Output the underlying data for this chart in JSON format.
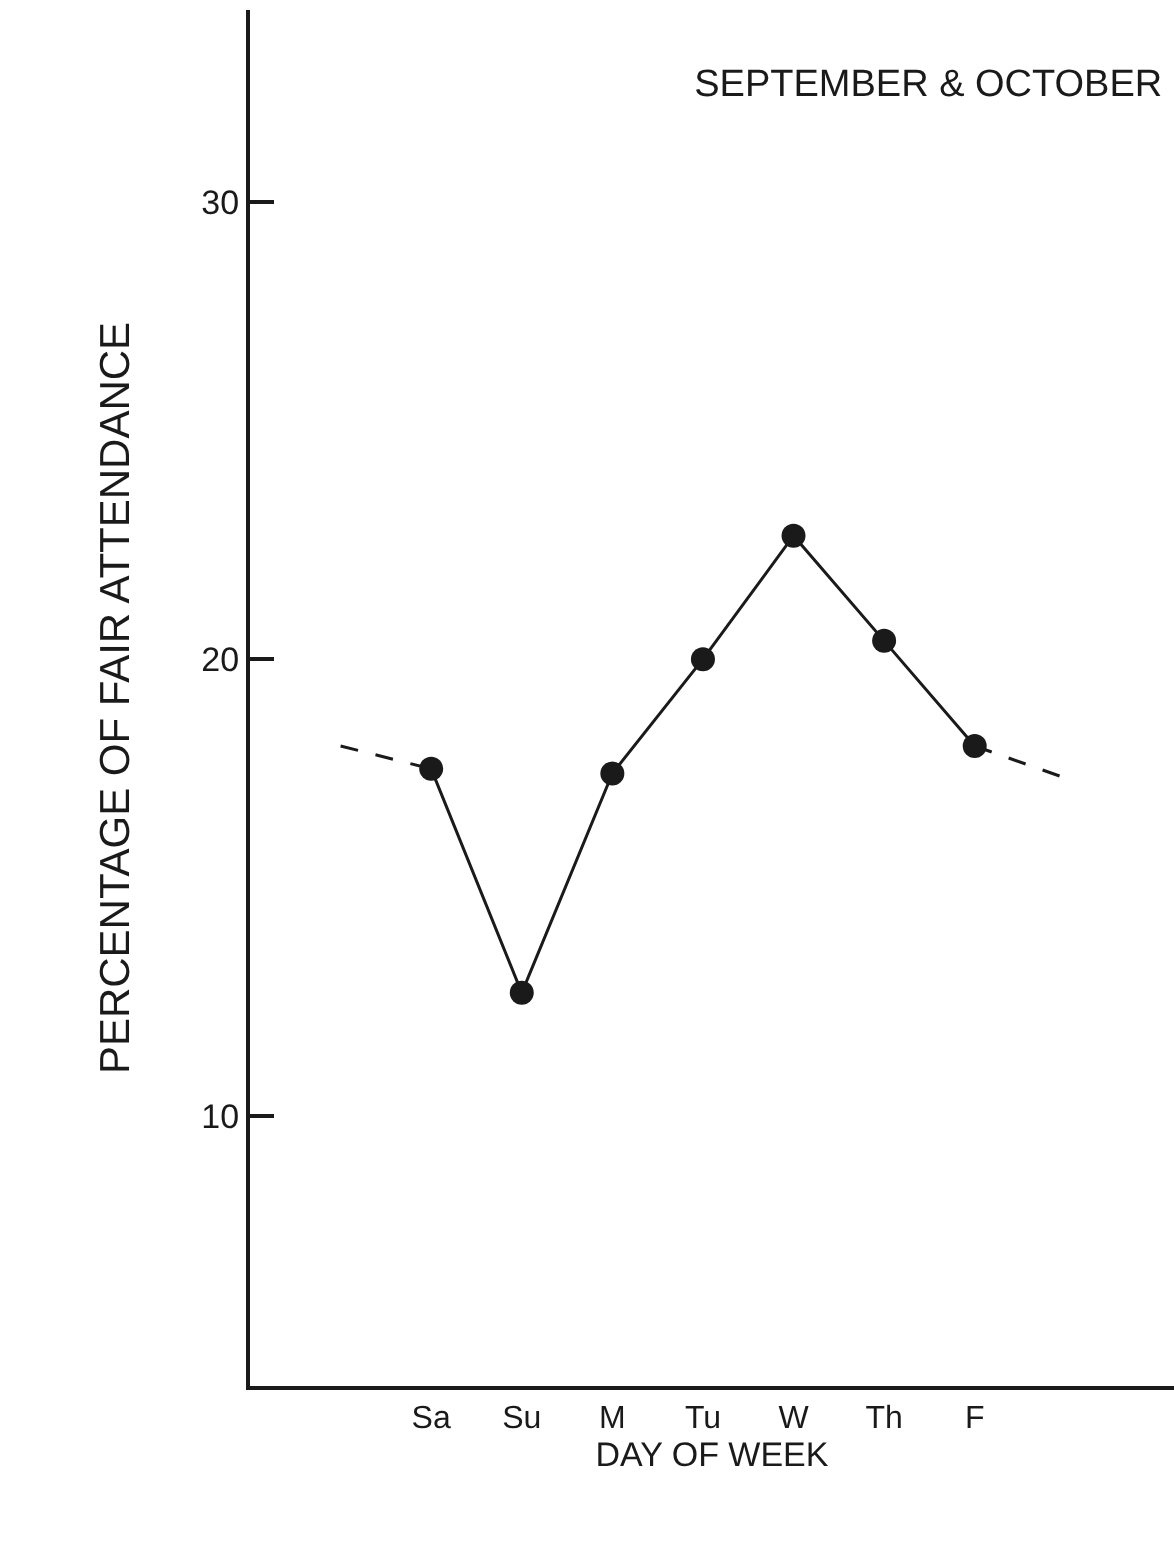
{
  "chart_data": {
    "type": "line",
    "title": "SEPTEMBER & OCTOBER",
    "xlabel": "DAY OF WEEK",
    "ylabel": "PERCENTAGE OF FAIR ATTENDANCE",
    "categories": [
      null,
      "Sa",
      "Su",
      "M",
      "Tu",
      "W",
      "Th",
      "F",
      null
    ],
    "ylim": [
      4.1,
      34.2
    ],
    "yticks": [
      10,
      20,
      30
    ],
    "series": [
      {
        "color": "#1a1a1a",
        "marker": "circle",
        "line_style": "solid",
        "values": [
          null,
          17.6,
          12.7,
          17.5,
          20.0,
          22.7,
          20.4,
          18.1,
          null
        ]
      },
      {
        "color": "#1a1a1a",
        "line_style": "dashed",
        "values": [
          18.1,
          17.6,
          null,
          null,
          null,
          null,
          null,
          null,
          null
        ]
      },
      {
        "color": "#1a1a1a",
        "line_style": "dashed",
        "values": [
          null,
          null,
          null,
          null,
          null,
          null,
          null,
          18.1,
          17.4
        ]
      }
    ]
  }
}
